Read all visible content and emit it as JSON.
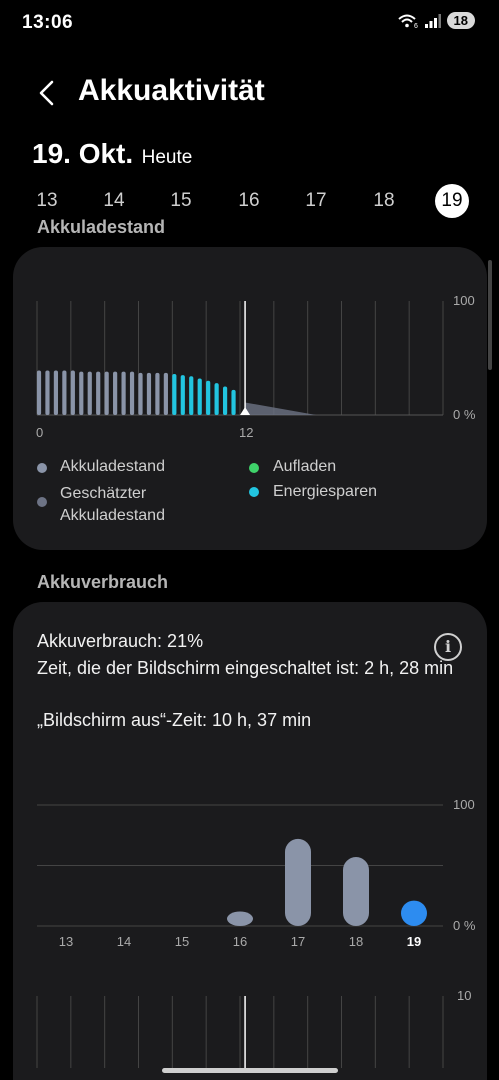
{
  "status": {
    "time": "13:06",
    "battery": "18",
    "wifi_icon": "wifi-icon",
    "signal_icon": "signal-icon"
  },
  "header": {
    "title": "Akkuaktivität",
    "back_icon": "chevron-left-icon"
  },
  "date": {
    "big": "19. Okt.",
    "small": "Heute"
  },
  "days": [
    "13",
    "14",
    "15",
    "16",
    "17",
    "18",
    "19"
  ],
  "selected_day": "19",
  "battery_level_section": {
    "label": "Akkuladestand",
    "chart_data": {
      "type": "bar",
      "y_tick_labels": [
        "100",
        "0 %"
      ],
      "x_tick_labels": [
        "0",
        "12"
      ],
      "x_values_hours": [
        0,
        0.5,
        1,
        1.5,
        2,
        2.5,
        3,
        3.5,
        4,
        4.5,
        5,
        5.5,
        6,
        6.5,
        7,
        7.5,
        8,
        8.5,
        9,
        9.5,
        10,
        10.5,
        11,
        11.5
      ],
      "values_percent": [
        39,
        39,
        39,
        39,
        39,
        38,
        38,
        38,
        38,
        38,
        38,
        38,
        37,
        37,
        37,
        37,
        36,
        35,
        34,
        32,
        30,
        28,
        25,
        22
      ],
      "power_saving_from_hour": 8,
      "current_hour": 12.3,
      "estimated_end_hour": 16.5,
      "ylim": [
        0,
        100
      ],
      "grid": true,
      "colors": {
        "level": "#8a94a8",
        "power_saving": "#22c5e0",
        "estimated": "#6d7385",
        "charging": "#3fd26a"
      }
    },
    "legend": [
      {
        "label": "Akkuladestand",
        "color": "#8a94a8"
      },
      {
        "label": "Geschätzter Akkuladestand",
        "color": "#6d7385"
      },
      {
        "label": "Aufladen",
        "color": "#3fd26a"
      },
      {
        "label": "Energiesparen",
        "color": "#22c5e0"
      }
    ]
  },
  "usage_section": {
    "label": "Akkuverbrauch",
    "line1": "Akkuverbrauch: 21%",
    "line2": "Zeit, die der Bildschirm eingeschaltet ist: 2 h, 28 min",
    "line3": "„Bildschirm aus“-Zeit: 10 h, 37 min",
    "info_icon": "info-icon",
    "chart_data": {
      "type": "bar",
      "categories": [
        "13",
        "14",
        "15",
        "16",
        "17",
        "18",
        "19"
      ],
      "values": [
        0,
        0,
        0,
        12,
        72,
        57,
        21
      ],
      "ylim": [
        0,
        100
      ],
      "y_tick_labels": [
        "100",
        "0 %"
      ],
      "grid": true,
      "colors": {
        "bar": "#8a94a8",
        "selected": "#2d8cf0"
      }
    },
    "bottom_chart_top_label": "10"
  }
}
